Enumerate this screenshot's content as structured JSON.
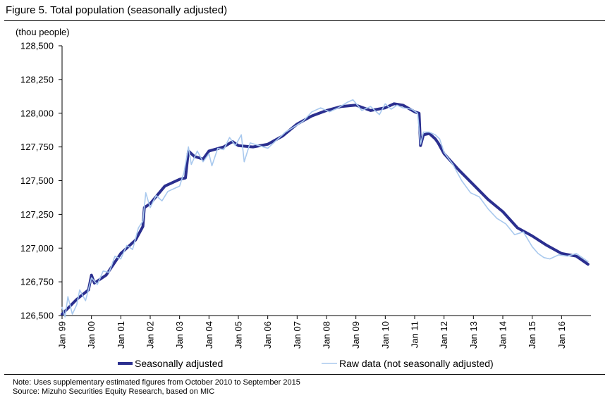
{
  "figure": {
    "title": "Figure 5. Total population (seasonally adjusted)",
    "note": "Note: Uses supplementary estimated figures from October 2010 to September 2015",
    "source": "Source: Mizuho Securities Equity Research, based on MIC"
  },
  "chart_data": {
    "type": "line",
    "title": "Figure 5. Total population (seasonally adjusted)",
    "ylabel": "(thou people)",
    "xlabel": "",
    "ylim": [
      126500,
      128500
    ],
    "yticks": [
      126500,
      126750,
      127000,
      127250,
      127500,
      127750,
      128000,
      128250,
      128500
    ],
    "ytick_labels": [
      "126,500",
      "126,750",
      "127,000",
      "127,250",
      "127,500",
      "127,750",
      "128,000",
      "128,250",
      "128,500"
    ],
    "xlim": [
      1999.0,
      2017.0
    ],
    "xticks": [
      1999,
      2000,
      2001,
      2002,
      2003,
      2004,
      2005,
      2006,
      2007,
      2008,
      2009,
      2010,
      2011,
      2012,
      2013,
      2014,
      2015,
      2016
    ],
    "xtick_labels": [
      "Jan 99",
      "Jan 00",
      "Jan 01",
      "Jan 02",
      "Jan 03",
      "Jan 04",
      "Jan 05",
      "Jan 06",
      "Jan 07",
      "Jan 08",
      "Jan 09",
      "Jan 10",
      "Jan 11",
      "Jan 12",
      "Jan 13",
      "Jan 14",
      "Jan 15",
      "Jan 16"
    ],
    "grid": false,
    "legend": "bottom",
    "series": [
      {
        "name": "Seasonally adjusted",
        "color": "#2B2F8F",
        "x": [
          1999.0,
          1999.5,
          1999.9,
          2000.0,
          2000.1,
          2000.5,
          2001.0,
          2001.5,
          2001.75,
          2001.8,
          2002.0,
          2002.5,
          2003.0,
          2003.2,
          2003.3,
          2003.5,
          2003.8,
          2004.0,
          2004.5,
          2004.8,
          2005.0,
          2005.5,
          2006.0,
          2006.5,
          2007.0,
          2007.5,
          2008.0,
          2008.5,
          2009.0,
          2009.5,
          2010.0,
          2010.3,
          2010.6,
          2011.0,
          2011.15,
          2011.2,
          2011.3,
          2011.5,
          2011.7,
          2011.8,
          2012.0,
          2012.5,
          2013.0,
          2013.5,
          2014.0,
          2014.5,
          2015.0,
          2015.5,
          2016.0,
          2016.5,
          2016.9
        ],
        "y": [
          126510,
          126620,
          126690,
          126800,
          126740,
          126800,
          126960,
          127060,
          127160,
          127300,
          127330,
          127460,
          127510,
          127520,
          127720,
          127680,
          127660,
          127720,
          127750,
          127790,
          127760,
          127750,
          127770,
          127830,
          127920,
          127980,
          128020,
          128050,
          128060,
          128020,
          128040,
          128070,
          128060,
          128010,
          128000,
          127760,
          127840,
          127850,
          127810,
          127780,
          127700,
          127580,
          127470,
          127360,
          127270,
          127150,
          127090,
          127020,
          126960,
          126940,
          126880
        ]
      },
      {
        "name": "Raw data (not seasonally adjusted)",
        "color": "#A9C9EE",
        "x": [
          1999.0,
          1999.1,
          1999.2,
          1999.35,
          1999.5,
          1999.6,
          1999.8,
          2000.0,
          2000.2,
          2000.4,
          2000.6,
          2000.8,
          2001.0,
          2001.2,
          2001.4,
          2001.6,
          2001.75,
          2001.85,
          2002.0,
          2002.2,
          2002.4,
          2002.6,
          2002.8,
          2003.0,
          2003.15,
          2003.3,
          2003.4,
          2003.6,
          2003.8,
          2004.0,
          2004.1,
          2004.3,
          2004.5,
          2004.7,
          2004.9,
          2005.1,
          2005.2,
          2005.4,
          2005.7,
          2006.0,
          2006.3,
          2006.6,
          2006.9,
          2007.2,
          2007.5,
          2007.8,
          2008.1,
          2008.4,
          2008.7,
          2008.9,
          2009.2,
          2009.5,
          2009.8,
          2010.0,
          2010.2,
          2010.4,
          2010.6,
          2010.9,
          2011.1,
          2011.2,
          2011.3,
          2011.5,
          2011.7,
          2011.85,
          2012.0,
          2012.3,
          2012.6,
          2012.9,
          2013.2,
          2013.5,
          2013.8,
          2014.1,
          2014.4,
          2014.7,
          2015.0,
          2015.2,
          2015.4,
          2015.6,
          2015.9,
          2016.2,
          2016.5,
          2016.7,
          2016.9
        ],
        "y": [
          126560,
          126490,
          126640,
          126510,
          126580,
          126690,
          126610,
          126780,
          126730,
          126830,
          126820,
          126940,
          126920,
          127020,
          126990,
          127150,
          127200,
          127410,
          127300,
          127390,
          127350,
          127420,
          127440,
          127460,
          127560,
          127750,
          127620,
          127720,
          127640,
          127700,
          127610,
          127740,
          127730,
          127820,
          127760,
          127840,
          127640,
          127780,
          127760,
          127740,
          127800,
          127860,
          127900,
          127940,
          128010,
          128040,
          128010,
          128040,
          128080,
          128100,
          128020,
          128050,
          127990,
          128070,
          128030,
          128060,
          128040,
          128030,
          128000,
          127770,
          127860,
          127860,
          127840,
          127810,
          127710,
          127620,
          127500,
          127410,
          127380,
          127290,
          127220,
          127180,
          127100,
          127120,
          127010,
          126960,
          126930,
          126920,
          126950,
          126940,
          126960,
          126930,
          126900
        ]
      }
    ]
  }
}
